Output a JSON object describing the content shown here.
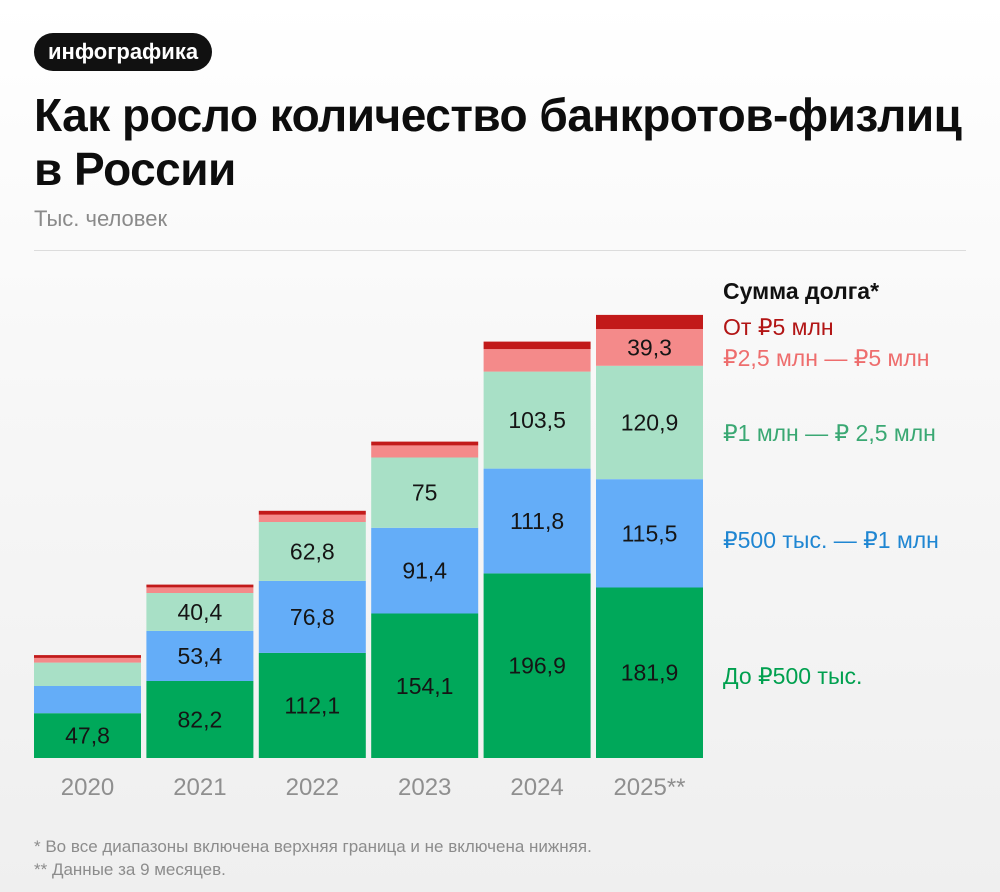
{
  "header": {
    "badge": "инфографика",
    "title_line1": "Как росло количество банкротов-физлиц",
    "title_line2": "в России",
    "subtitle": "Тыс. человек"
  },
  "footnotes": {
    "note1": "* Во все диапазоны включена верхняя граница и не включена нижняя.",
    "note2": "** Данные за 9 месяцев."
  },
  "colors": {
    "seg_0": "#00a85a",
    "seg_1": "#64adf8",
    "seg_2": "#a8e0c6",
    "seg_3": "#f48a8a",
    "seg_4": "#c21a1a",
    "legend_0": "#00a04f",
    "legend_1": "#1f86d2",
    "legend_2": "#3aa873",
    "legend_3": "#ee6d6d",
    "legend_4": "#b21515",
    "axis_label": "#8f8f8f"
  },
  "chart_data": {
    "type": "bar",
    "stacked": true,
    "categories": [
      "2020",
      "2021",
      "2022",
      "2023",
      "2024",
      "2025**"
    ],
    "legend_title": "Сумма долга*",
    "legend_position": "right",
    "series": [
      {
        "name": "До ₽500 тыс.",
        "values": [
          47.8,
          82.2,
          112.1,
          154.1,
          196.9,
          181.9
        ],
        "labels": [
          "47,8",
          "82,2",
          "112,1",
          "154,1",
          "196,9",
          "181,9"
        ]
      },
      {
        "name": "₽500 тыс. — ₽1 млн",
        "values": [
          29,
          53.4,
          76.8,
          91.4,
          111.8,
          115.5
        ],
        "labels": [
          "",
          "53,4",
          "76,8",
          "91,4",
          "111,8",
          "115,5"
        ]
      },
      {
        "name": "₽1 млн — ₽ 2,5 млн",
        "values": [
          25,
          40.4,
          62.8,
          75,
          103.5,
          120.9
        ],
        "labels": [
          "",
          "40,4",
          "62,8",
          "75",
          "103,5",
          "120,9"
        ]
      },
      {
        "name": "₽2,5 млн — ₽5 млн",
        "values": [
          5,
          6,
          8,
          13,
          24,
          39.3
        ],
        "labels": [
          "",
          "",
          "",
          "",
          "",
          "39,3"
        ]
      },
      {
        "name": "От ₽5 млн",
        "values": [
          3,
          3,
          4,
          4,
          8,
          15
        ],
        "labels": [
          "",
          "",
          "",
          "",
          "",
          ""
        ]
      }
    ],
    "ylim": [
      0,
      480
    ],
    "grid": false
  }
}
